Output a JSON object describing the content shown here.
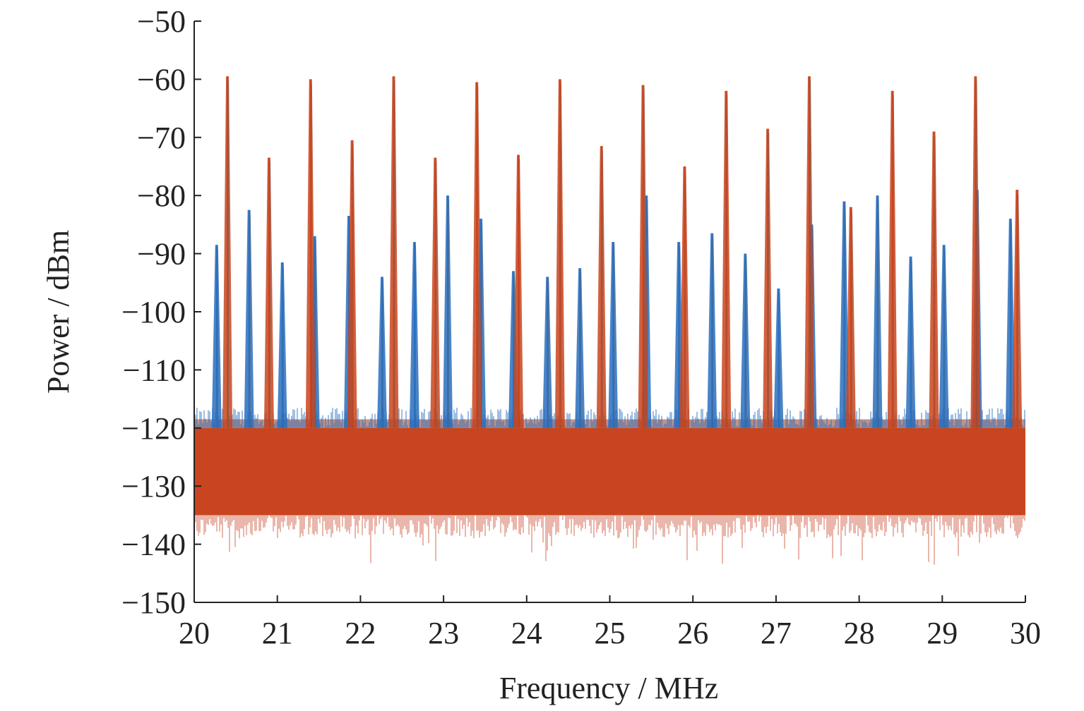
{
  "chart_data": {
    "type": "line",
    "xlabel": "Frequency / MHz",
    "ylabel": "Power / dBm",
    "xlim": [
      20,
      30
    ],
    "ylim": [
      -150,
      -50
    ],
    "x_ticks": [
      "20",
      "21",
      "22",
      "23",
      "24",
      "25",
      "26",
      "27",
      "28",
      "29",
      "30"
    ],
    "y_ticks": [
      "−50",
      "−60",
      "−70",
      "−80",
      "−90",
      "−100",
      "−110",
      "−120",
      "−130",
      "−140",
      "−150"
    ],
    "grid": false,
    "legend": "none",
    "noise_floor": {
      "upper": -120,
      "lower": -135,
      "min": -144
    },
    "series": [
      {
        "color": "#c8451f",
        "style": "red-orange spectrum (combs at integer + 0.4 MHz)",
        "peaks": [
          {
            "x": 20.4,
            "y": -59.5
          },
          {
            "x": 21.4,
            "y": -60
          },
          {
            "x": 22.4,
            "y": -59.5
          },
          {
            "x": 23.4,
            "y": -60.5
          },
          {
            "x": 24.4,
            "y": -60
          },
          {
            "x": 25.4,
            "y": -61
          },
          {
            "x": 26.4,
            "y": -62
          },
          {
            "x": 27.4,
            "y": -59.5
          },
          {
            "x": 28.4,
            "y": -62
          },
          {
            "x": 29.4,
            "y": -59.5
          },
          {
            "x": 20.9,
            "y": -73.5
          },
          {
            "x": 21.9,
            "y": -70.5
          },
          {
            "x": 22.9,
            "y": -73.5
          },
          {
            "x": 23.9,
            "y": -73
          },
          {
            "x": 24.9,
            "y": -71.5
          },
          {
            "x": 25.9,
            "y": -75
          },
          {
            "x": 26.9,
            "y": -68.5
          },
          {
            "x": 27.9,
            "y": -82
          },
          {
            "x": 28.9,
            "y": -69
          },
          {
            "x": 29.9,
            "y": -79
          }
        ]
      },
      {
        "color": "#2a6fbd",
        "style": "blue spectrum (intermodulation peaks)",
        "peaks": [
          {
            "x": 20.27,
            "y": -88.5
          },
          {
            "x": 20.66,
            "y": -82.5
          },
          {
            "x": 21.06,
            "y": -91.5
          },
          {
            "x": 21.45,
            "y": -87
          },
          {
            "x": 21.86,
            "y": -83.5
          },
          {
            "x": 22.26,
            "y": -94
          },
          {
            "x": 22.65,
            "y": -88
          },
          {
            "x": 23.05,
            "y": -80
          },
          {
            "x": 23.45,
            "y": -84
          },
          {
            "x": 23.84,
            "y": -93
          },
          {
            "x": 24.25,
            "y": -94
          },
          {
            "x": 24.64,
            "y": -92.5
          },
          {
            "x": 25.04,
            "y": -88
          },
          {
            "x": 25.44,
            "y": -80
          },
          {
            "x": 25.83,
            "y": -88
          },
          {
            "x": 26.23,
            "y": -86.5
          },
          {
            "x": 26.63,
            "y": -90
          },
          {
            "x": 27.03,
            "y": -96
          },
          {
            "x": 27.43,
            "y": -85
          },
          {
            "x": 27.82,
            "y": -81
          },
          {
            "x": 28.22,
            "y": -80
          },
          {
            "x": 28.62,
            "y": -90.5
          },
          {
            "x": 29.02,
            "y": -88.5
          },
          {
            "x": 29.42,
            "y": -79
          },
          {
            "x": 29.82,
            "y": -84
          }
        ]
      }
    ]
  }
}
